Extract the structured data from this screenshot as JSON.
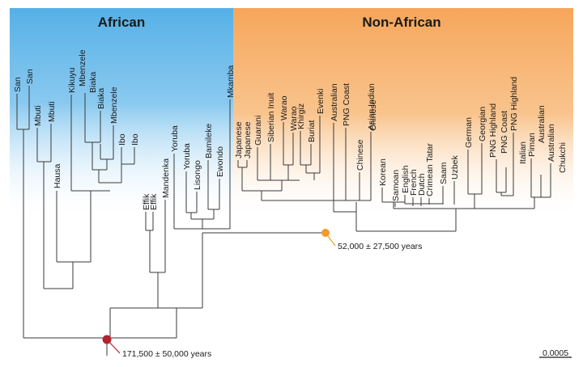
{
  "regions": {
    "african": {
      "label": "African",
      "color": "#55b0e6"
    },
    "non_african": {
      "label": "Non-African",
      "color": "#f6a65a"
    }
  },
  "nodes": {
    "root": {
      "label": "171,500 ± 50,000 years",
      "color": "#b3202f"
    },
    "out_of_africa": {
      "label": "52,000 ± 27,500 years",
      "color": "#f29a2e"
    }
  },
  "scale_bar": {
    "label": "0.0005"
  },
  "taxa": [
    "San",
    "San",
    "Mbuti",
    "Mbuti",
    "Hausa",
    "Kikuyu",
    "Mbenzele",
    "Biaka",
    "Biaka",
    "Mbenzele",
    "Ibo",
    "Ibo",
    "Effik",
    "Effik",
    "Mandenka",
    "Yoruba",
    "Yoruba",
    "Lisongo",
    "Bamileke",
    "Ewondo",
    "Mkamba",
    "Japanese",
    "Japanese",
    "Guarani",
    "Siberian Inuit",
    "Warao",
    "Warao",
    "Khirgiz",
    "Buriat",
    "Evenki",
    "Australian",
    "PNG Coast",
    "Chinese",
    "Asian Indian",
    "Chinese",
    "Korean",
    "Samoan",
    "English",
    "French",
    "Dutch",
    "Crimean Tatar",
    "Saam",
    "Uzbek",
    "German",
    "Georgian",
    "PNG Highland",
    "PNG Coast",
    "PNG Highland",
    "Italian",
    "Piman",
    "Australian",
    "Australian",
    "Chukchi"
  ]
}
